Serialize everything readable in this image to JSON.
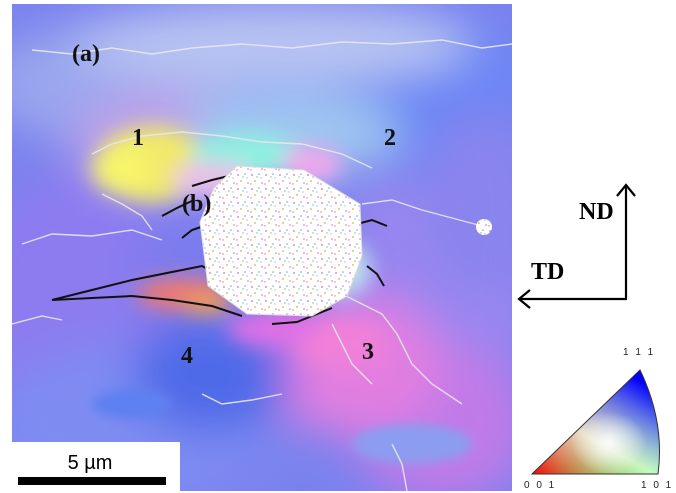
{
  "labels": {
    "panel_a": "(a)",
    "panel_b": "(b)",
    "region_1": "1",
    "region_2": "2",
    "region_3": "3",
    "region_4": "4"
  },
  "scale_bar": {
    "text": "5 µm"
  },
  "axes": {
    "vertical": "ND",
    "horizontal": "TD"
  },
  "ipf_legend": {
    "top": "1 1 1",
    "bottom_left": "0 0 1",
    "bottom_right": "1 0 1"
  }
}
